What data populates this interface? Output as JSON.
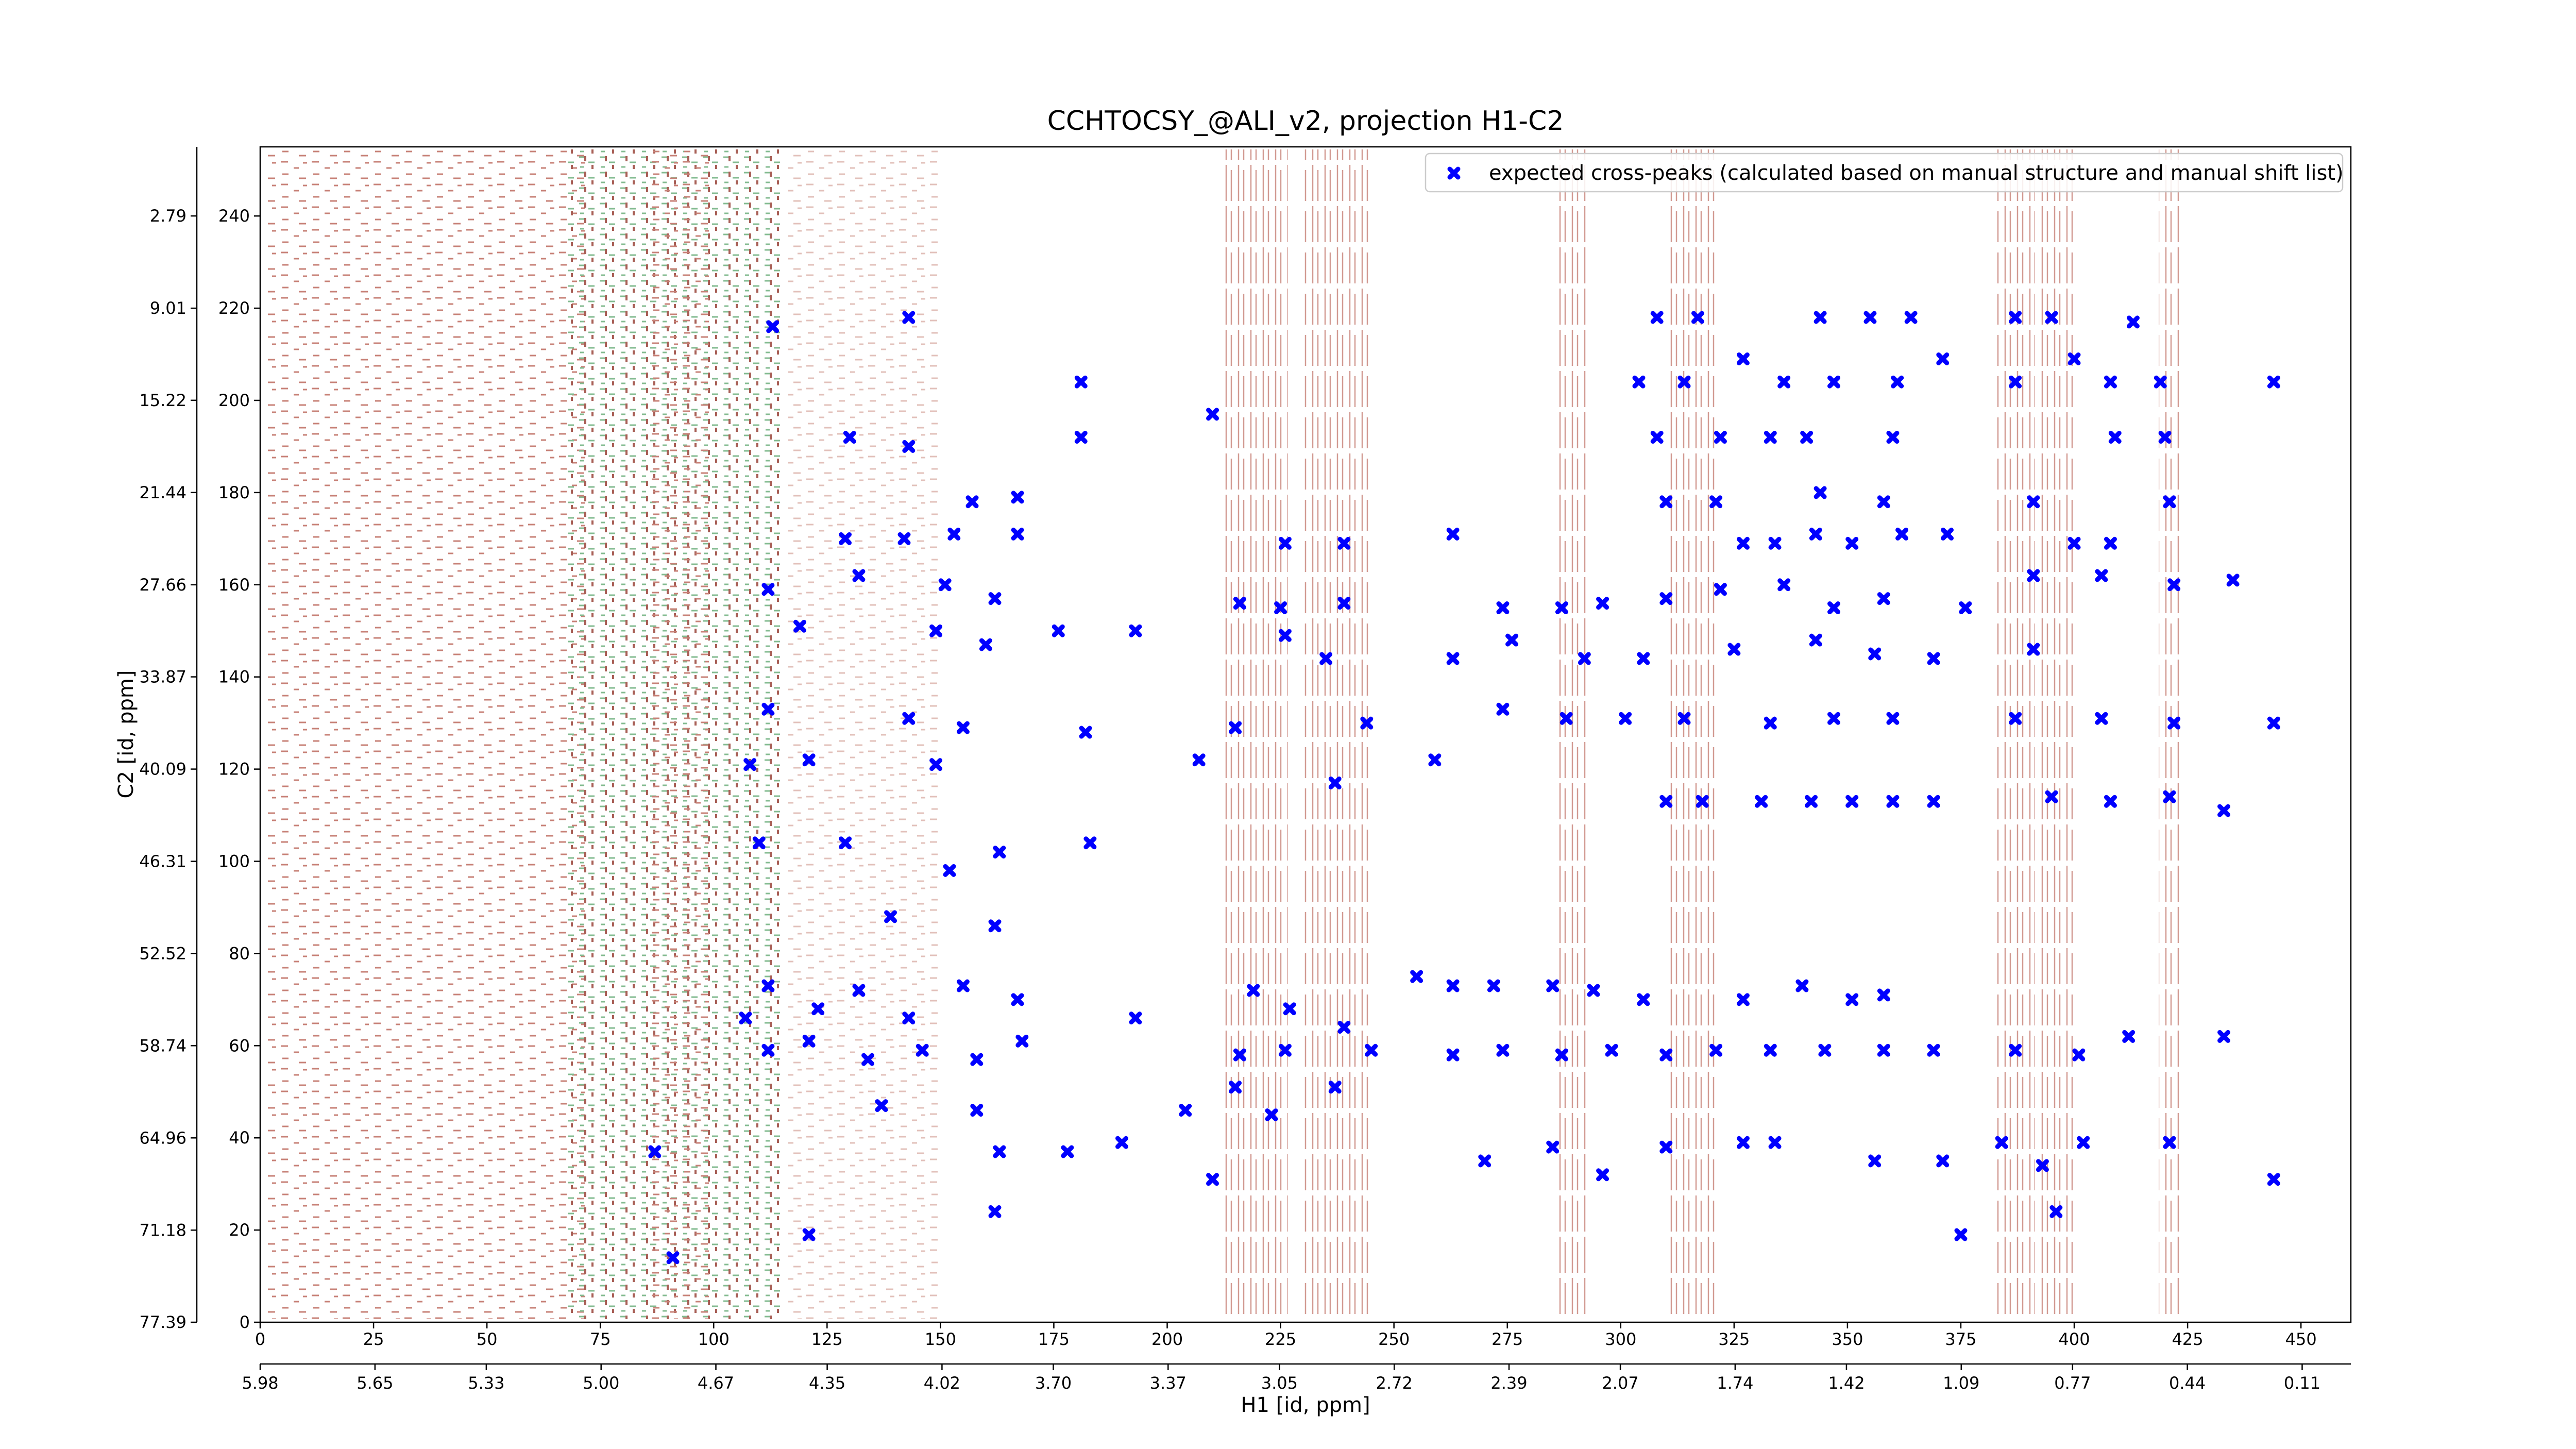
{
  "chart_data": {
    "type": "scatter",
    "title": "CCHTOCSY_@ALI_v2, projection H1-C2",
    "xlabel": "H1 [id, ppm]",
    "ylabel": "C2 [id, ppm]",
    "xlim": [
      0,
      461
    ],
    "ylim": [
      0,
      255
    ],
    "xticks": [
      0,
      25,
      50,
      75,
      100,
      125,
      150,
      175,
      200,
      225,
      250,
      275,
      300,
      325,
      350,
      375,
      400,
      425,
      450
    ],
    "yticks": [
      0,
      20,
      40,
      60,
      80,
      100,
      120,
      140,
      160,
      180,
      200,
      220,
      240
    ],
    "x2lim": [
      5.98,
      -0.03
    ],
    "x2ticks": [
      5.98,
      5.65,
      5.33,
      {
        "value": 5,
        "label": "5.00"
      },
      4.67,
      4.35,
      4.02,
      {
        "value": 3.7,
        "label": "3.70"
      },
      3.37,
      3.05,
      2.72,
      2.39,
      2.07,
      1.74,
      1.42,
      1.09,
      0.77,
      0.44,
      0.11
    ],
    "y2lim": [
      77.39,
      -1.87
    ],
    "y2ticks": [
      77.39,
      71.18,
      64.96,
      58.74,
      52.52,
      46.31,
      40.09,
      33.87,
      27.66,
      21.44,
      15.22,
      9.01,
      2.79
    ],
    "legend": "upper right",
    "series": [
      {
        "name": "expected cross-peaks (calculated based on manual structure and manual shift list)",
        "color": "#0000ff",
        "x": [
          113,
          143,
          308,
          317,
          344,
          355,
          364,
          387,
          395,
          413,
          181,
          210,
          304,
          314,
          327,
          336,
          347,
          361,
          371,
          387,
          400,
          408,
          419,
          444,
          130,
          143,
          181,
          308,
          322,
          333,
          341,
          360,
          409,
          420,
          157,
          167,
          310,
          321,
          344,
          358,
          391,
          421,
          129,
          142,
          153,
          167,
          226,
          239,
          263,
          327,
          334,
          343,
          351,
          362,
          372,
          400,
          408,
          112,
          132,
          151,
          162,
          216,
          225,
          239,
          274,
          287,
          296,
          310,
          322,
          336,
          347,
          358,
          376,
          391,
          406,
          422,
          435,
          119,
          149,
          160,
          176,
          193,
          226,
          235,
          263,
          276,
          292,
          305,
          325,
          343,
          356,
          369,
          391,
          112,
          143,
          155,
          182,
          215,
          244,
          259,
          274,
          288,
          301,
          314,
          333,
          347,
          360,
          387,
          406,
          422,
          444,
          108,
          121,
          149,
          207,
          237,
          310,
          318,
          331,
          342,
          351,
          360,
          369,
          395,
          408,
          421,
          433,
          110,
          129,
          152,
          163,
          183,
          162,
          139,
          112,
          107,
          123,
          132,
          143,
          155,
          167,
          193,
          219,
          227,
          239,
          255,
          263,
          272,
          285,
          294,
          305,
          327,
          340,
          351,
          358,
          112,
          121,
          134,
          146,
          158,
          168,
          216,
          226,
          245,
          263,
          274,
          287,
          298,
          310,
          321,
          333,
          345,
          358,
          369,
          387,
          401,
          412,
          433,
          137,
          158,
          163,
          178,
          190,
          204,
          215,
          223,
          237,
          270,
          285,
          296,
          310,
          327,
          334,
          356,
          371,
          384,
          393,
          402,
          421,
          444,
          375,
          396,
          210,
          162,
          121,
          87,
          91
        ],
        "values": [
          216,
          218,
          218,
          218,
          218,
          218,
          218,
          218,
          218,
          217,
          204,
          197,
          204,
          204,
          209,
          204,
          204,
          204,
          209,
          204,
          209,
          204,
          204,
          204,
          192,
          190,
          192,
          192,
          192,
          192,
          192,
          192,
          192,
          192,
          178,
          179,
          178,
          178,
          180,
          178,
          178,
          178,
          170,
          170,
          171,
          171,
          169,
          169,
          171,
          169,
          169,
          171,
          169,
          171,
          171,
          169,
          169,
          159,
          162,
          160,
          157,
          156,
          155,
          156,
          155,
          155,
          156,
          157,
          159,
          160,
          155,
          157,
          155,
          162,
          162,
          160,
          161,
          151,
          150,
          147,
          150,
          150,
          149,
          144,
          144,
          148,
          144,
          144,
          146,
          148,
          145,
          144,
          146,
          133,
          131,
          129,
          128,
          129,
          130,
          122,
          133,
          131,
          131,
          131,
          130,
          131,
          131,
          131,
          131,
          130,
          130,
          121,
          122,
          121,
          122,
          117,
          113,
          113,
          113,
          113,
          113,
          113,
          113,
          114,
          113,
          114,
          111,
          104,
          104,
          98,
          102,
          104,
          86,
          88,
          73,
          66,
          68,
          72,
          66,
          73,
          70,
          66,
          72,
          68,
          64,
          75,
          73,
          73,
          73,
          72,
          70,
          70,
          73,
          70,
          71,
          59,
          61,
          57,
          59,
          57,
          61,
          58,
          59,
          59,
          58,
          59,
          58,
          59,
          58,
          59,
          59,
          59,
          59,
          59,
          59,
          58,
          62,
          62,
          47,
          46,
          37,
          37,
          39,
          46,
          51,
          45,
          51,
          35,
          38,
          32,
          38,
          39,
          39,
          35,
          35,
          39,
          34,
          39,
          39,
          31,
          19,
          24,
          31,
          24,
          19,
          37,
          14
        ]
      }
    ]
  }
}
